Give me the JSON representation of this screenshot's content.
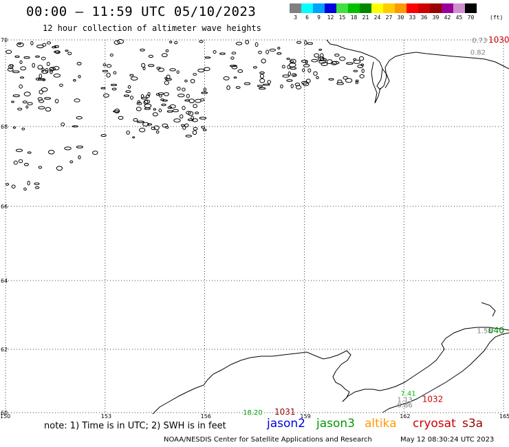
{
  "header": {
    "title": "00:00 — 11:59 UTC 05/10/2023",
    "subtitle": "12 hour collection of altimeter wave heights"
  },
  "color_scale": {
    "unit": "(ft)",
    "bins": [
      {
        "label": "3",
        "color": "#808080"
      },
      {
        "label": "6",
        "color": "#00ffff"
      },
      {
        "label": "9",
        "color": "#00a0ff"
      },
      {
        "label": "12",
        "color": "#0000e0"
      },
      {
        "label": "15",
        "color": "#40e040"
      },
      {
        "label": "18",
        "color": "#00c000"
      },
      {
        "label": "21",
        "color": "#008800"
      },
      {
        "label": "24",
        "color": "#ffff00"
      },
      {
        "label": "27",
        "color": "#ffcc00"
      },
      {
        "label": "30",
        "color": "#ff9900"
      },
      {
        "label": "33",
        "color": "#ff0000"
      },
      {
        "label": "36",
        "color": "#cc0000"
      },
      {
        "label": "39",
        "color": "#990000"
      },
      {
        "label": "42",
        "color": "#990099"
      },
      {
        "label": "45",
        "color": "#d090d0"
      },
      {
        "label": "70",
        "color": "#000000"
      }
    ]
  },
  "map": {
    "lon_labels": [
      "150",
      "153",
      "156",
      "159",
      "162",
      "165"
    ],
    "lat_labels": [
      "60",
      "62",
      "64",
      "66",
      "68",
      "70"
    ],
    "observations": [
      {
        "text": "0.73",
        "color": "#808080",
        "lon": 164.05,
        "lat": 70.0,
        "size": "small"
      },
      {
        "text": "1030",
        "color": "#cc0000",
        "lon": 164.95,
        "lat": 70.0,
        "size": "big"
      },
      {
        "text": "0.82",
        "color": "#808080",
        "lon": 164.0,
        "lat": 69.72,
        "size": "small"
      },
      {
        "text": "1.58",
        "color": "#808080",
        "lon": 164.2,
        "lat": 62.55,
        "size": "small"
      },
      {
        "text": "040",
        "color": "#008800",
        "lon": 164.75,
        "lat": 62.55,
        "size": "big"
      },
      {
        "text": "7.41",
        "color": "#00c000",
        "lon": 161.9,
        "lat": 60.62,
        "size": "small"
      },
      {
        "text": "1.13",
        "color": "#808080",
        "lon": 161.8,
        "lat": 60.42,
        "size": "small"
      },
      {
        "text": "0.86",
        "color": "#808080",
        "lon": 161.8,
        "lat": 60.25,
        "size": "small"
      },
      {
        "text": "1032",
        "color": "#cc0000",
        "lon": 162.55,
        "lat": 60.42,
        "size": "big"
      },
      {
        "text": "18.20",
        "color": "#00a000",
        "lon": 157.15,
        "lat": 60.02,
        "size": "small"
      },
      {
        "text": "1031",
        "color": "#990000",
        "lon": 158.1,
        "lat": 60.02,
        "size": "big"
      }
    ]
  },
  "footer": {
    "note": "note: 1) Time is in UTC; 2) SWH is in feet",
    "legend": [
      {
        "label": "jason2",
        "color": "#0000dd"
      },
      {
        "label": "jason3",
        "color": "#009900"
      },
      {
        "label": "altika",
        "color": "#ff9900"
      },
      {
        "label": "cryosat",
        "color": "#cc0000"
      },
      {
        "label": "s3a",
        "color": "#990000"
      }
    ],
    "credit": "NOAA/NESDIS Center for Satellite Applications and Research",
    "timestamp": "May 12 08:30:24 UTC 2023"
  }
}
